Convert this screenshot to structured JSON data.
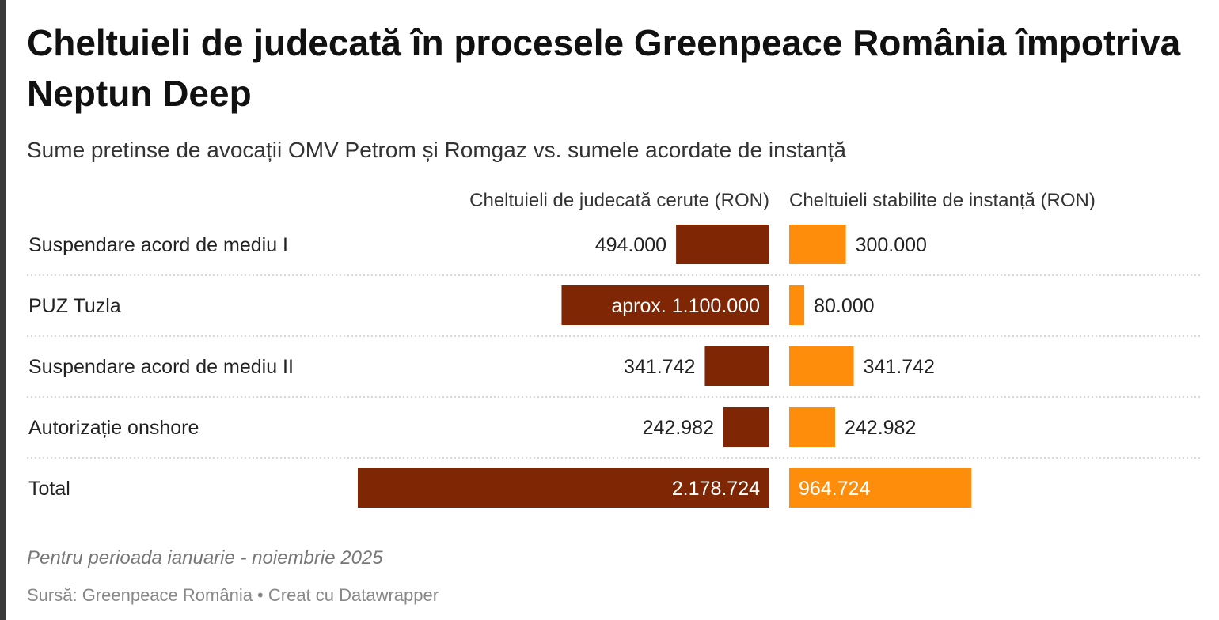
{
  "title": "Cheltuieli de judecată în procesele Greenpeace România împotriva Neptun Deep",
  "subtitle": "Sume pretinse de avocații OMV Petrom și Romgaz vs. sumele acordate de instanță",
  "notes": "Pentru perioada ianuarie - noiembrie 2025",
  "source": "Sursă: Greenpeace România • Creat cu Datawrapper",
  "chart_data": {
    "type": "bar",
    "categories": [
      "Suspendare acord de mediu I",
      "PUZ Tuzla",
      "Suspendare acord de mediu II",
      "Autorizație onshore",
      "Total"
    ],
    "series": [
      {
        "name": "Cheltuieli de judecată cerute (RON)",
        "values": [
          494000,
          1100000,
          341742,
          242982,
          2178724
        ],
        "labels": [
          "494.000",
          "aprox. 1.100.000",
          "341.742",
          "242.982",
          "2.178.724"
        ],
        "color": "#7f2704"
      },
      {
        "name": "Cheltuieli stabilite de instanță (RON)",
        "values": [
          300000,
          80000,
          341742,
          242982,
          964724
        ],
        "labels": [
          "300.000",
          "80.000",
          "341.742",
          "242.982",
          "964.724"
        ],
        "color": "#fd8d0a"
      }
    ]
  }
}
